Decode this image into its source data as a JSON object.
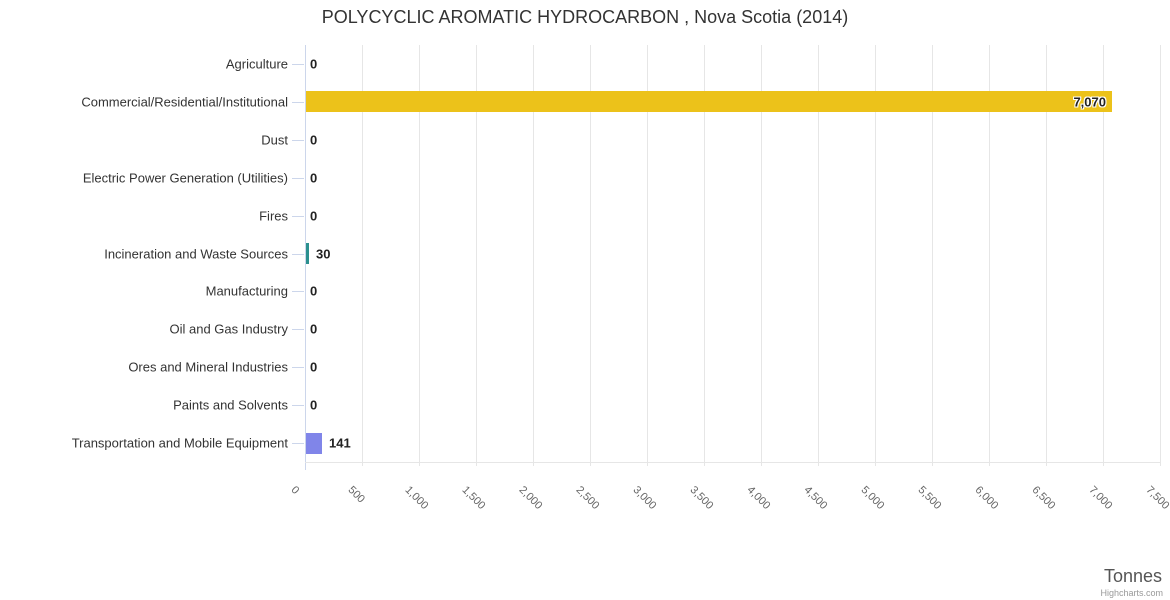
{
  "title": "POLYCYCLIC AROMATIC HYDROCARBON , Nova Scotia (2014)",
  "value_axis_title": "Tonnes",
  "credits": "Highcharts.com",
  "colors": {
    "title_text": "#333333",
    "category_text": "#333333",
    "tick_text": "#666666",
    "value_label_text": "#222222",
    "axis_line": "#ccd6eb",
    "gridline": "#e6e6e6"
  },
  "chart_data": {
    "type": "bar",
    "orientation": "horizontal",
    "title": "POLYCYCLIC AROMATIC HYDROCARBON , Nova Scotia (2014)",
    "xlabel": "Tonnes",
    "ylabel": "",
    "categories": [
      "Agriculture",
      "Commercial/Residential/Institutional",
      "Dust",
      "Electric Power Generation (Utilities)",
      "Fires",
      "Incineration and Waste Sources",
      "Manufacturing",
      "Oil and Gas Industry",
      "Ores and Mineral Industries",
      "Paints and Solvents",
      "Transportation and Mobile Equipment"
    ],
    "values": [
      0,
      7070,
      0,
      0,
      0,
      30,
      0,
      0,
      0,
      0,
      141
    ],
    "value_labels": [
      "0",
      "7,070",
      "0",
      "0",
      "0",
      "30",
      "0",
      "0",
      "0",
      "0",
      "141"
    ],
    "bar_colors": [
      "#7cb5ec",
      "#ecc21a",
      "#90ed7d",
      "#f7a35c",
      "#f15c80",
      "#2b908f",
      "#e4d354",
      "#434348",
      "#f45b5b",
      "#91e8e1",
      "#8085e9"
    ],
    "value_range": [
      0,
      7500
    ],
    "tick_step": 500,
    "tick_labels": [
      "0",
      "500",
      "1,000",
      "1,500",
      "2,000",
      "2,500",
      "3,000",
      "3,500",
      "4,000",
      "4,500",
      "5,000",
      "5,500",
      "6,000",
      "6,500",
      "7,000",
      "7,500"
    ],
    "grid": true,
    "legend": false
  }
}
